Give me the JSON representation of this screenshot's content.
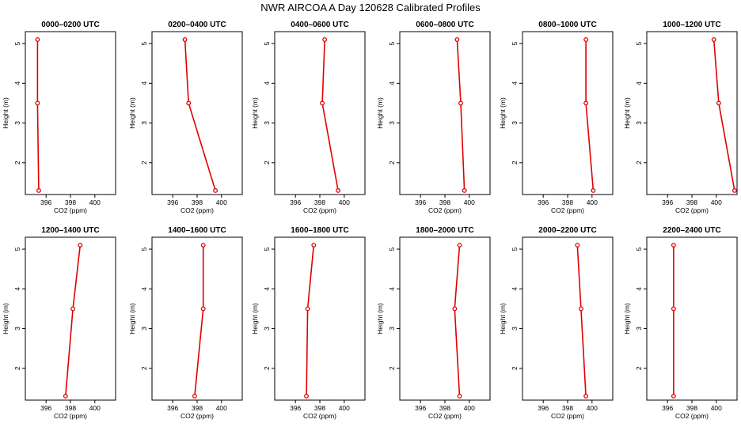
{
  "chart_data": {
    "type": "line",
    "title": "NWR AIRCOA A  Day 120628  Calibrated Profiles",
    "xlabel": "CO2 (ppm)",
    "ylabel": "Height (m)",
    "xlim": [
      394.3,
      401.7
    ],
    "ylim": [
      1.2,
      5.3
    ],
    "xticks": [
      396,
      398,
      400
    ],
    "yticks": [
      2,
      3,
      4,
      5
    ],
    "heights": [
      1.3,
      3.5,
      5.1
    ],
    "panels": [
      {
        "title": "0000–0200 UTC",
        "values": [
          395.4,
          395.3,
          395.3
        ]
      },
      {
        "title": "0200–0400 UTC",
        "values": [
          399.5,
          397.3,
          397.0
        ]
      },
      {
        "title": "0400–0600 UTC",
        "values": [
          399.5,
          398.2,
          398.4
        ]
      },
      {
        "title": "0600–0800 UTC",
        "values": [
          399.6,
          399.3,
          399.0
        ]
      },
      {
        "title": "0800–1000 UTC",
        "values": [
          400.1,
          399.5,
          399.5
        ]
      },
      {
        "title": "1000–1200 UTC",
        "values": [
          401.5,
          400.2,
          399.8
        ]
      },
      {
        "title": "1200–1400 UTC",
        "values": [
          397.6,
          398.2,
          398.8
        ]
      },
      {
        "title": "1400–1600 UTC",
        "values": [
          397.8,
          398.5,
          398.5
        ]
      },
      {
        "title": "1600–1800 UTC",
        "values": [
          396.9,
          397.0,
          397.5
        ]
      },
      {
        "title": "1800–2000 UTC",
        "values": [
          399.2,
          398.8,
          399.2
        ]
      },
      {
        "title": "2000–2200 UTC",
        "values": [
          399.5,
          399.1,
          398.8
        ]
      },
      {
        "title": "2200–2400 UTC",
        "values": [
          396.5,
          396.5,
          396.5
        ]
      }
    ]
  }
}
